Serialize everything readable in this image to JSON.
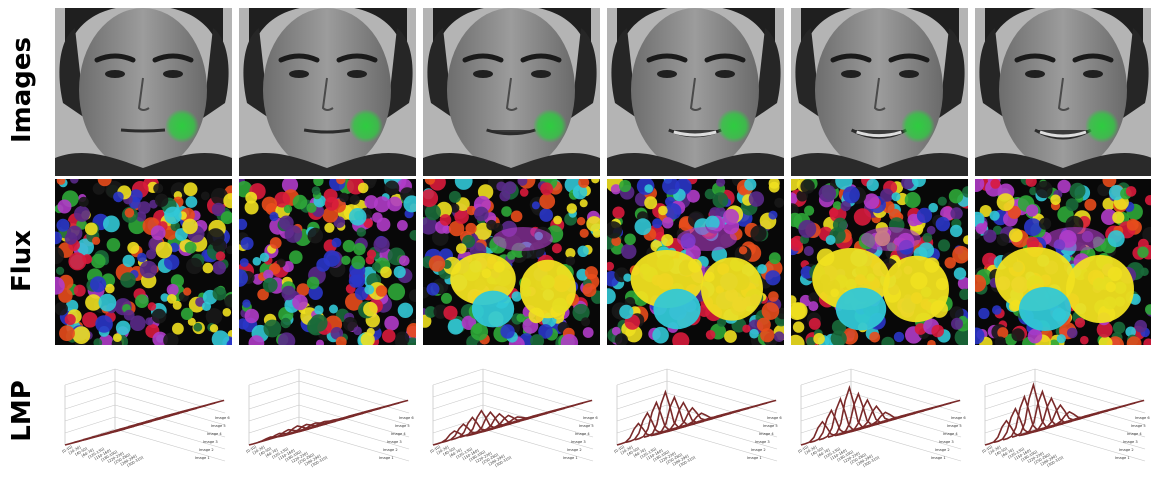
{
  "rows": [
    {
      "id": "images",
      "label": "Images"
    },
    {
      "id": "flux",
      "label": "Flux"
    },
    {
      "id": "lmp",
      "label": "LMP"
    }
  ],
  "frames": [
    {
      "smile": 0.0,
      "lmp_peak": 0.0
    },
    {
      "smile": 0.15,
      "lmp_peak": 0.1
    },
    {
      "smile": 0.4,
      "lmp_peak": 0.38
    },
    {
      "smile": 0.7,
      "lmp_peak": 0.72
    },
    {
      "smile": 0.9,
      "lmp_peak": 0.8
    },
    {
      "smile": 1.0,
      "lmp_peak": 0.85
    }
  ],
  "colors": {
    "marker": "#2ecc40",
    "lmp_line": "#7a2a2a",
    "flux_palette": [
      "#d81b3c",
      "#2a36c8",
      "#2fa838",
      "#32c8d6",
      "#f0e020",
      "#b03cc8",
      "#e84c1c",
      "#1a6a3a",
      "#5a2a8a",
      "#181818"
    ]
  },
  "lmp": {
    "x_tick_labels": [
      "[0-10]",
      "[20-30]",
      "[40-50]",
      "[60-70]",
      "[120-130]",
      "[150-160]",
      "[180-190]",
      "[220-230]",
      "[250-260]",
      "[280-290]",
      "[300-310]"
    ],
    "z_labels": [
      "Image 1",
      "Image 2",
      "Image 3",
      "Image 4",
      "Image 5",
      "Image 6"
    ]
  }
}
